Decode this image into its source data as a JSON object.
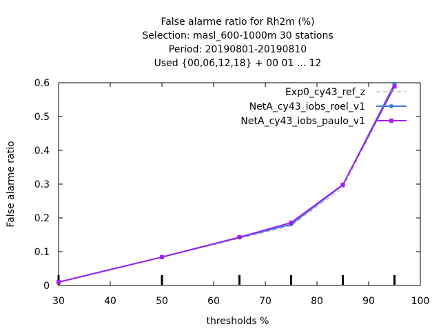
{
  "chart_data": {
    "type": "line",
    "title_lines": [
      "False alarme ratio  for Rh2m (%)",
      "Selection: masl_600-1000m     30 stations",
      "Period: 20190801-20190810",
      "Used {00,06,12,18} + 00 01 ... 12"
    ],
    "xlabel": "thresholds %",
    "ylabel": "False alarme ratio",
    "xlim": [
      30,
      100
    ],
    "ylim": [
      0,
      0.6
    ],
    "x_ticks": [
      30,
      40,
      50,
      60,
      70,
      80,
      90,
      100
    ],
    "y_ticks": [
      0,
      0.1,
      0.2,
      0.3,
      0.4,
      0.5,
      0.6
    ],
    "grid": false,
    "legend_position": "top-right",
    "marker_positions": [
      30,
      50,
      65,
      75,
      85,
      95
    ],
    "series": [
      {
        "name": "Exp0_cy43_ref_z",
        "color": "#a0a0a0",
        "dashed": true,
        "marker": "none",
        "x": [
          30,
          50,
          65,
          75,
          85,
          95
        ],
        "y": [
          0.01,
          0.084,
          0.139,
          0.177,
          0.289,
          0.589
        ]
      },
      {
        "name": "NetA_cy43_iobs_roel_v1",
        "color": "#3a7bd5",
        "dashed": false,
        "marker": "circle",
        "x": [
          30,
          50,
          65,
          75,
          85,
          95
        ],
        "y": [
          0.01,
          0.084,
          0.142,
          0.181,
          0.297,
          0.597
        ]
      },
      {
        "name": "NetA_cy43_iobs_paulo_v1",
        "color": "#a020f0",
        "dashed": false,
        "marker": "square",
        "x": [
          30,
          50,
          65,
          75,
          85,
          95
        ],
        "y": [
          0.01,
          0.084,
          0.143,
          0.186,
          0.298,
          0.589
        ]
      }
    ]
  }
}
